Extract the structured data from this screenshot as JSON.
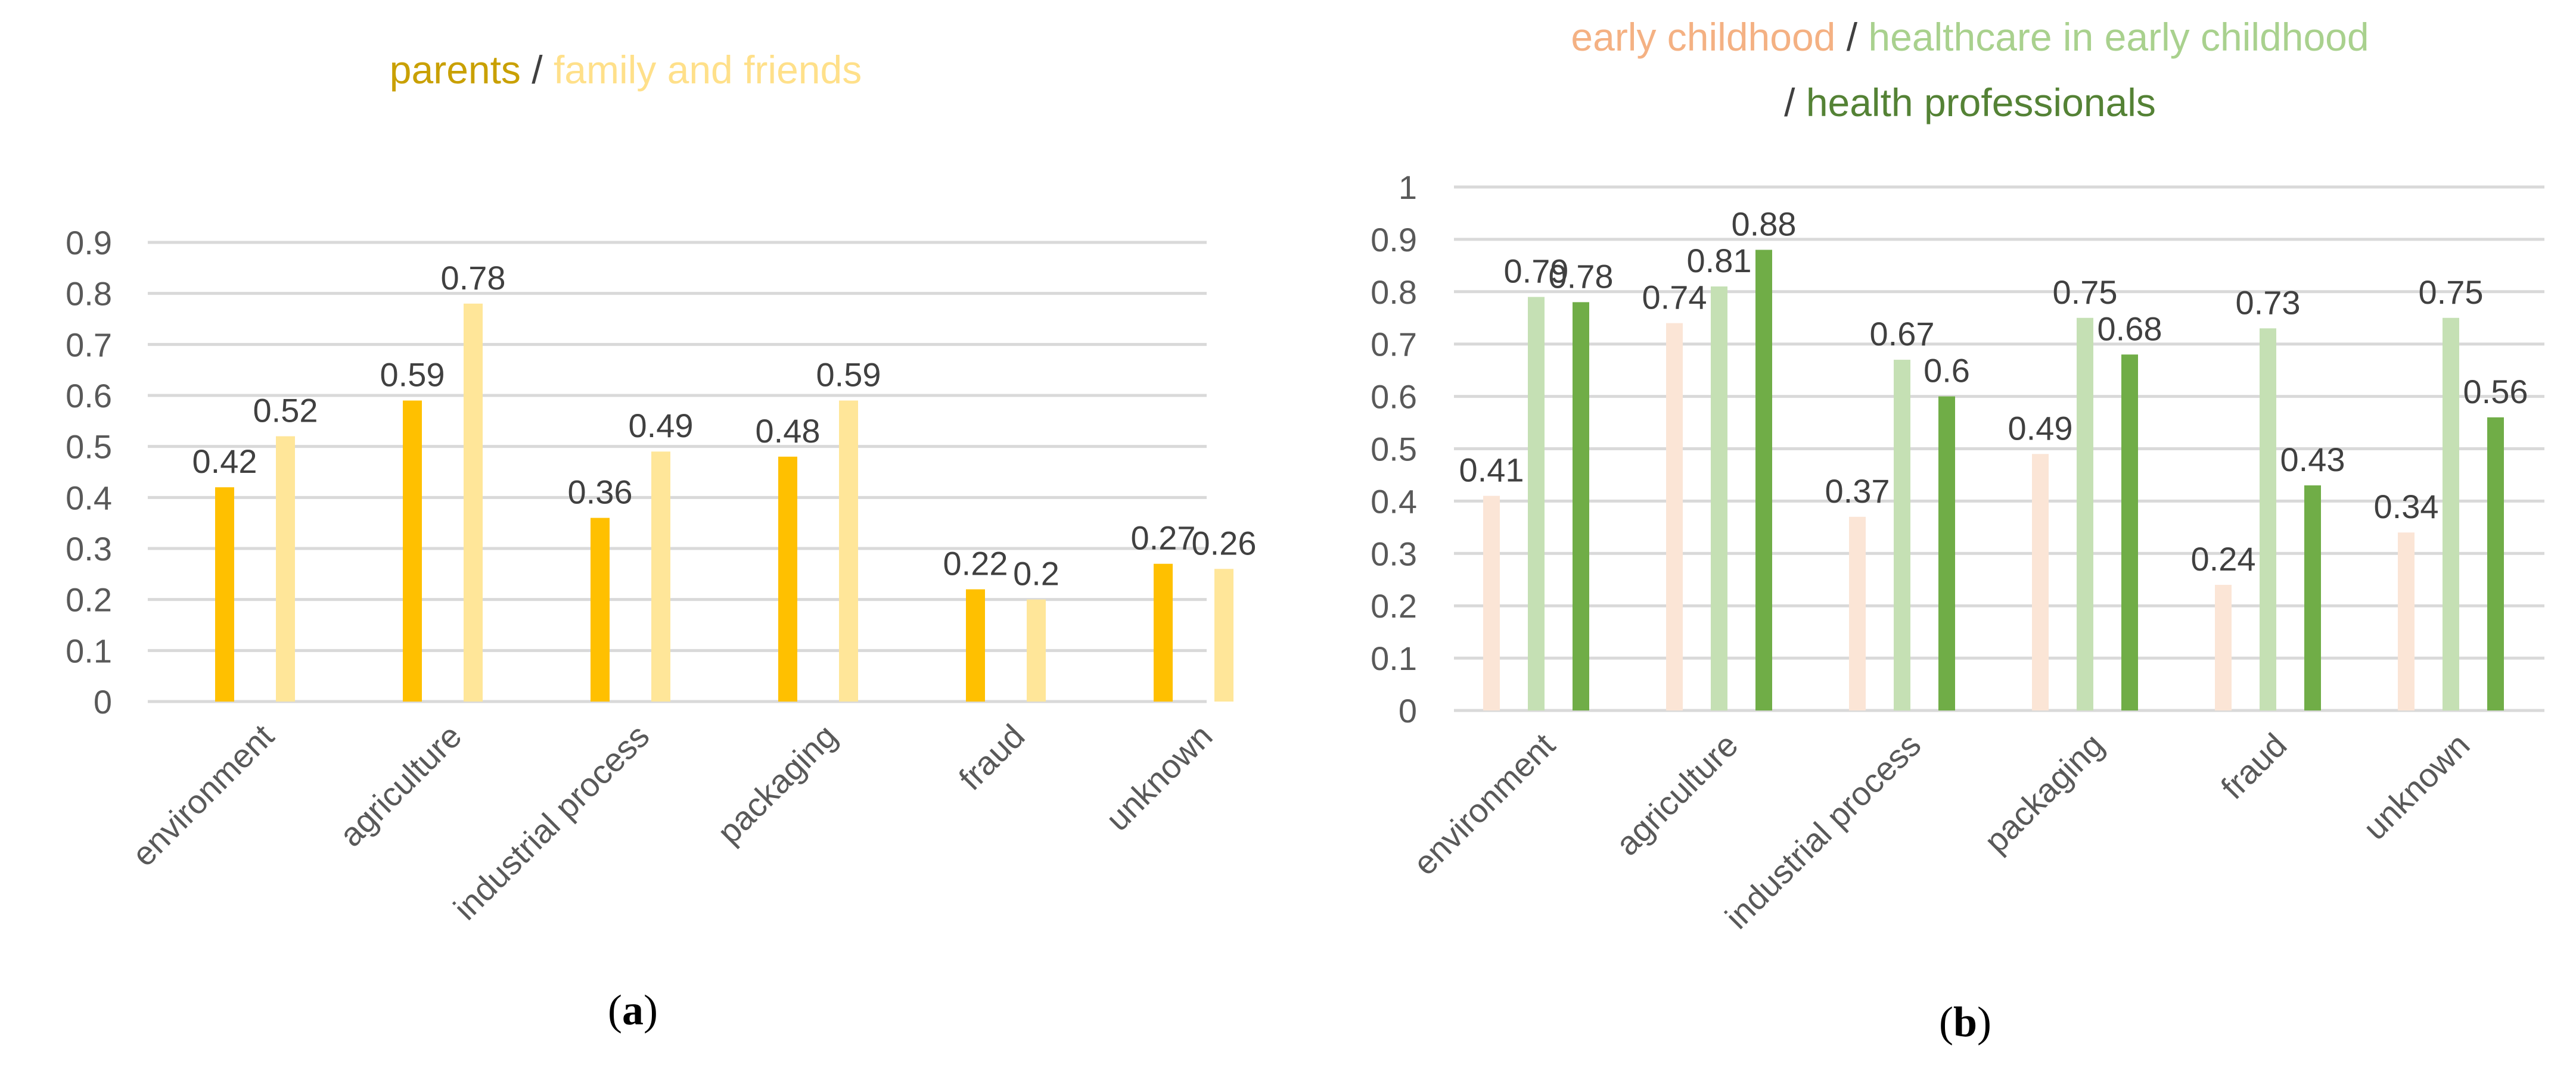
{
  "chart_data": [
    {
      "type": "bar",
      "panel": "a",
      "caption": {
        "open": "(",
        "letter": "a",
        "close": ")"
      },
      "legend": [
        {
          "name": "parents",
          "color": "#C9A000"
        },
        {
          "separator": "/"
        },
        {
          "name": "family and friends",
          "color": "#FFE08A"
        }
      ],
      "categories": [
        "environment",
        "agriculture",
        "industrial process",
        "packaging",
        "fraud",
        "unknown"
      ],
      "series": [
        {
          "name": "parents",
          "color": "#FFC000",
          "values": [
            0.42,
            0.59,
            0.36,
            0.48,
            0.22,
            0.27
          ],
          "labels": [
            "0.42",
            "0.59",
            "0.36",
            "0.48",
            "0.22",
            "0.27"
          ]
        },
        {
          "name": "family and friends",
          "color": "#FFE699",
          "values": [
            0.52,
            0.78,
            0.49,
            0.59,
            0.2,
            0.26
          ],
          "labels": [
            "0.52",
            "0.78",
            "0.49",
            "0.59",
            "0.2",
            "0.26"
          ]
        }
      ],
      "y_ticks": [
        "0",
        "0.1",
        "0.2",
        "0.3",
        "0.4",
        "0.5",
        "0.6",
        "0.7",
        "0.8",
        "0.9"
      ],
      "ylim": [
        0,
        0.9
      ],
      "grid": true
    },
    {
      "type": "bar",
      "panel": "b",
      "caption": {
        "open": "(",
        "letter": "b",
        "close": ")"
      },
      "legend_lines": [
        [
          {
            "name": "early childhood",
            "color": "#F4B183"
          },
          {
            "separator": "/"
          },
          {
            "name": "healthcare in early childhood",
            "color": "#A9D18E"
          }
        ],
        [
          {
            "separator": "/"
          },
          {
            "name": "health professionals",
            "color": "#548235"
          }
        ]
      ],
      "categories": [
        "environment",
        "agriculture",
        "industrial process",
        "packaging",
        "fraud",
        "unknown"
      ],
      "series": [
        {
          "name": "early childhood",
          "color": "#FBE5D6",
          "values": [
            0.41,
            0.74,
            0.37,
            0.49,
            0.24,
            0.34
          ],
          "labels": [
            "0.41",
            "0.74",
            "0.37",
            "0.49",
            "0.24",
            "0.34"
          ]
        },
        {
          "name": "healthcare in early childhood",
          "color": "#C5E0B4",
          "values": [
            0.79,
            0.81,
            0.67,
            0.75,
            0.73,
            0.75
          ],
          "labels": [
            "0.79",
            "0.81",
            "0.67",
            "0.75",
            "0.73",
            "0.75"
          ]
        },
        {
          "name": "health professionals",
          "color": "#70AD47",
          "values": [
            0.78,
            0.88,
            0.6,
            0.68,
            0.43,
            0.56
          ],
          "labels": [
            "0.78",
            "0.88",
            "0.6",
            "0.68",
            "0.43",
            "0.56"
          ]
        }
      ],
      "y_ticks": [
        "0",
        "0.1",
        "0.2",
        "0.3",
        "0.4",
        "0.5",
        "0.6",
        "0.7",
        "0.8",
        "0.9",
        "1"
      ],
      "ylim": [
        0,
        1
      ],
      "grid": true
    }
  ]
}
